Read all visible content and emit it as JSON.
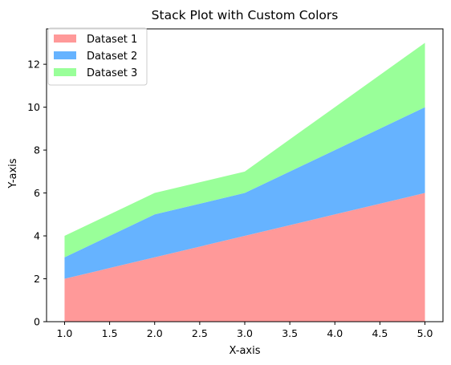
{
  "chart_data": {
    "type": "area",
    "stacked": true,
    "title": "Stack Plot with Custom Colors",
    "xlabel": "X-axis",
    "ylabel": "Y-axis",
    "x": [
      1,
      2,
      3,
      4,
      5
    ],
    "series": [
      {
        "name": "Dataset 1",
        "values": [
          2,
          3,
          4,
          5,
          6
        ],
        "color": "#ff9999"
      },
      {
        "name": "Dataset 2",
        "values": [
          1,
          2,
          2,
          3,
          4
        ],
        "color": "#66b3ff"
      },
      {
        "name": "Dataset 3",
        "values": [
          1,
          1,
          1,
          2,
          3
        ],
        "color": "#99ff99"
      }
    ],
    "xlim": [
      0.8,
      5.2
    ],
    "ylim": [
      0,
      13.65
    ],
    "xticks": [
      1.0,
      1.5,
      2.0,
      2.5,
      3.0,
      3.5,
      4.0,
      4.5,
      5.0
    ],
    "xtick_labels": [
      "1.0",
      "1.5",
      "2.0",
      "2.5",
      "3.0",
      "3.5",
      "4.0",
      "4.5",
      "5.0"
    ],
    "yticks": [
      0,
      2,
      4,
      6,
      8,
      10,
      12
    ],
    "ytick_labels": [
      "0",
      "2",
      "4",
      "6",
      "8",
      "10",
      "12"
    ],
    "grid": false,
    "legend_position": "top-left"
  }
}
